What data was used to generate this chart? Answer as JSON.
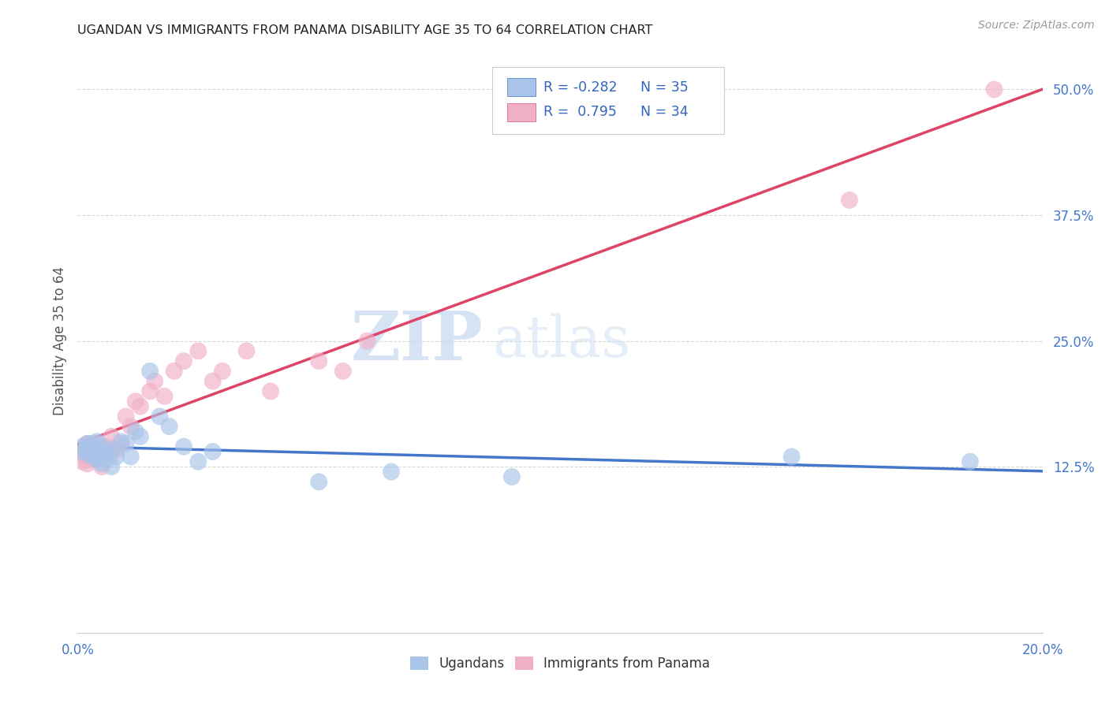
{
  "title": "UGANDAN VS IMMIGRANTS FROM PANAMA DISABILITY AGE 35 TO 64 CORRELATION CHART",
  "source": "Source: ZipAtlas.com",
  "ylabel": "Disability Age 35 to 64",
  "xmin": 0.0,
  "xmax": 0.2,
  "ymin": -0.04,
  "ymax": 0.54,
  "yticks": [
    0.125,
    0.25,
    0.375,
    0.5
  ],
  "ytick_labels": [
    "12.5%",
    "25.0%",
    "37.5%",
    "50.0%"
  ],
  "xticks": [
    0.0,
    0.02,
    0.04,
    0.06,
    0.08,
    0.1,
    0.12,
    0.14,
    0.16,
    0.18,
    0.2
  ],
  "xtick_labels": [
    "0.0%",
    "",
    "",
    "",
    "",
    "",
    "",
    "",
    "",
    "",
    "20.0%"
  ],
  "ugandan_color": "#a8c4e8",
  "panama_color": "#f0b0c8",
  "ugandan_edge_color": "#5588cc",
  "panama_edge_color": "#dd6688",
  "ugandan_line_color": "#4477cc",
  "panama_line_color": "#dd4466",
  "R_ugandan": -0.282,
  "N_ugandan": 35,
  "R_panama": 0.795,
  "N_panama": 34,
  "watermark_zip": "ZIP",
  "watermark_atlas": "atlas",
  "ugandan_x": [
    0.001,
    0.001,
    0.002,
    0.002,
    0.002,
    0.003,
    0.003,
    0.003,
    0.004,
    0.004,
    0.004,
    0.005,
    0.005,
    0.005,
    0.006,
    0.006,
    0.007,
    0.007,
    0.008,
    0.009,
    0.01,
    0.011,
    0.012,
    0.013,
    0.015,
    0.017,
    0.019,
    0.022,
    0.025,
    0.028,
    0.05,
    0.065,
    0.09,
    0.148,
    0.185
  ],
  "ugandan_y": [
    0.14,
    0.145,
    0.148,
    0.138,
    0.143,
    0.135,
    0.142,
    0.148,
    0.132,
    0.138,
    0.15,
    0.128,
    0.138,
    0.145,
    0.132,
    0.14,
    0.125,
    0.142,
    0.135,
    0.15,
    0.148,
    0.135,
    0.16,
    0.155,
    0.22,
    0.175,
    0.165,
    0.145,
    0.13,
    0.14,
    0.11,
    0.12,
    0.115,
    0.135,
    0.13
  ],
  "panama_x": [
    0.001,
    0.001,
    0.002,
    0.002,
    0.003,
    0.003,
    0.004,
    0.004,
    0.005,
    0.005,
    0.006,
    0.007,
    0.007,
    0.008,
    0.009,
    0.01,
    0.011,
    0.012,
    0.013,
    0.015,
    0.016,
    0.018,
    0.02,
    0.022,
    0.025,
    0.028,
    0.03,
    0.035,
    0.04,
    0.05,
    0.055,
    0.06,
    0.16,
    0.19
  ],
  "panama_y": [
    0.13,
    0.138,
    0.128,
    0.148,
    0.132,
    0.142,
    0.135,
    0.148,
    0.125,
    0.14,
    0.145,
    0.138,
    0.155,
    0.142,
    0.148,
    0.175,
    0.165,
    0.19,
    0.185,
    0.2,
    0.21,
    0.195,
    0.22,
    0.23,
    0.24,
    0.21,
    0.22,
    0.24,
    0.2,
    0.23,
    0.22,
    0.25,
    0.39,
    0.5
  ],
  "legend_label_ugandan": "Ugandans",
  "legend_label_panama": "Immigrants from Panama",
  "background_color": "#ffffff",
  "grid_color": "#d8d8d8",
  "title_color": "#222222",
  "axis_tick_color": "#4477cc"
}
